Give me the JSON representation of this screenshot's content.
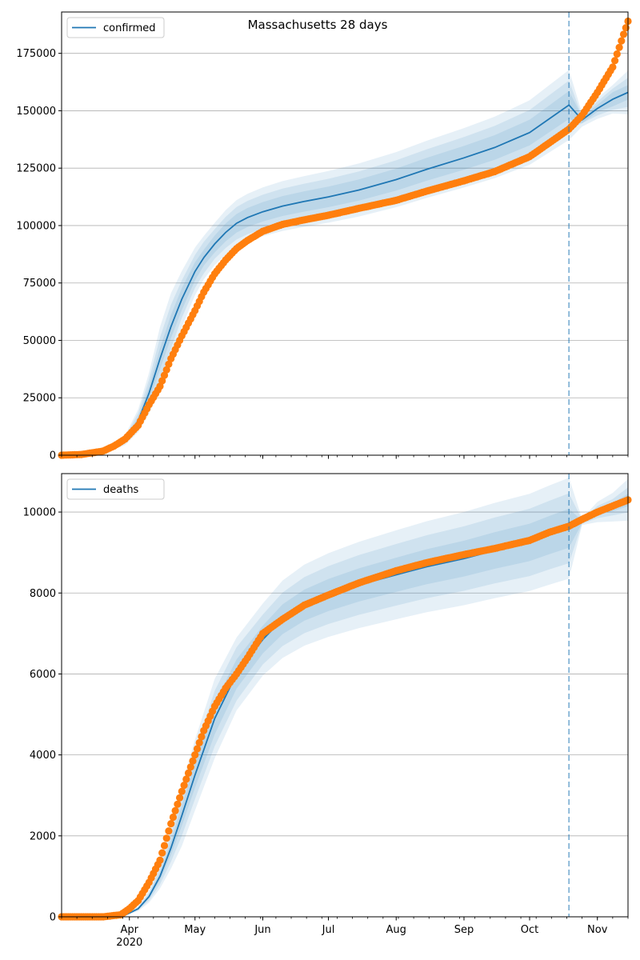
{
  "figure": {
    "title": "Massachusetts 28 days"
  },
  "colors": {
    "model_line": "#1f77b4",
    "observed_points": "#ff7f0e",
    "band": "#1f77b4",
    "grid": "#b0b0b0",
    "forecast_start_line": "#1f77b4"
  },
  "chart_data": [
    {
      "type": "line",
      "panel": "top",
      "legend": {
        "label": "confirmed",
        "position": "top-left"
      },
      "grid": "horizontal",
      "ylim": [
        0,
        193000
      ],
      "yticks": [
        0,
        25000,
        50000,
        75000,
        100000,
        125000,
        150000,
        175000
      ],
      "ytick_labels": [
        "0",
        "25000",
        "50000",
        "75000",
        "100000",
        "125000",
        "150000",
        "175000"
      ],
      "xlim": [
        "2020-03-01",
        "2020-11-15"
      ],
      "xticks": [
        "2020-04-01",
        "2020-05-01",
        "2020-06-01",
        "2020-07-01",
        "2020-08-01",
        "2020-09-01",
        "2020-10-01",
        "2020-11-01"
      ],
      "xtick_labels": [
        "",
        "",
        "",
        "",
        "",
        "",
        "",
        ""
      ],
      "forecast_start": "2020-10-19",
      "model": {
        "x": [
          "2020-03-01",
          "2020-03-10",
          "2020-03-20",
          "2020-03-30",
          "2020-04-05",
          "2020-04-10",
          "2020-04-15",
          "2020-04-20",
          "2020-04-25",
          "2020-05-01",
          "2020-05-05",
          "2020-05-10",
          "2020-05-15",
          "2020-05-20",
          "2020-05-25",
          "2020-06-01",
          "2020-06-10",
          "2020-06-20",
          "2020-07-01",
          "2020-07-15",
          "2020-08-01",
          "2020-08-15",
          "2020-09-01",
          "2020-09-15",
          "2020-10-01",
          "2020-10-10",
          "2020-10-19",
          "2020-10-25",
          "2020-11-01",
          "2020-11-08",
          "2020-11-15"
        ],
        "y": [
          0,
          300,
          1500,
          6500,
          15000,
          27000,
          42000,
          56000,
          68000,
          80000,
          86000,
          92000,
          97000,
          101000,
          103500,
          106000,
          108500,
          110500,
          112500,
          115500,
          120000,
          124500,
          129500,
          134000,
          140500,
          146500,
          152500,
          146000,
          151000,
          155000,
          158000
        ],
        "band_widths": [
          [
            0.11,
            0.22,
            0.33
          ],
          [
            0.11,
            0.22,
            0.33
          ],
          [
            0.11,
            0.22,
            0.33
          ],
          [
            0.11,
            0.22,
            0.33
          ],
          [
            0.11,
            0.22,
            0.33
          ],
          [
            0.11,
            0.22,
            0.33
          ],
          [
            0.11,
            0.22,
            0.33
          ],
          [
            0.09,
            0.17,
            0.26
          ],
          [
            0.07,
            0.12,
            0.18
          ],
          [
            0.05,
            0.09,
            0.13
          ],
          [
            0.04,
            0.08,
            0.11
          ],
          [
            0.04,
            0.07,
            0.1
          ],
          [
            0.04,
            0.07,
            0.1
          ],
          [
            0.04,
            0.07,
            0.1
          ],
          [
            0.04,
            0.07,
            0.1
          ],
          [
            0.04,
            0.07,
            0.1
          ],
          [
            0.04,
            0.07,
            0.1
          ],
          [
            0.04,
            0.07,
            0.1
          ],
          [
            0.04,
            0.07,
            0.1
          ],
          [
            0.04,
            0.07,
            0.1
          ],
          [
            0.04,
            0.07,
            0.1
          ],
          [
            0.04,
            0.07,
            0.1
          ],
          [
            0.04,
            0.07,
            0.1
          ],
          [
            0.04,
            0.07,
            0.1
          ],
          [
            0.04,
            0.07,
            0.1
          ],
          [
            0.04,
            0.07,
            0.1
          ],
          [
            0.04,
            0.07,
            0.1
          ],
          [
            0.01,
            0.01,
            0.02
          ],
          [
            0.01,
            0.02,
            0.03
          ],
          [
            0.02,
            0.03,
            0.04
          ],
          [
            0.02,
            0.04,
            0.06
          ]
        ]
      },
      "observed": {
        "x": [
          "2020-03-01",
          "2020-03-10",
          "2020-03-20",
          "2020-03-25",
          "2020-03-30",
          "2020-04-05",
          "2020-04-10",
          "2020-04-15",
          "2020-04-20",
          "2020-04-25",
          "2020-05-01",
          "2020-05-05",
          "2020-05-10",
          "2020-05-15",
          "2020-05-20",
          "2020-05-25",
          "2020-06-01",
          "2020-06-10",
          "2020-06-20",
          "2020-07-01",
          "2020-07-15",
          "2020-08-01",
          "2020-08-15",
          "2020-09-01",
          "2020-09-15",
          "2020-10-01",
          "2020-10-10",
          "2020-10-19",
          "2020-10-25",
          "2020-11-01",
          "2020-11-08",
          "2020-11-15"
        ],
        "y": [
          0,
          300,
          1800,
          4000,
          7000,
          13000,
          22000,
          30000,
          42000,
          52000,
          63000,
          71000,
          79000,
          85000,
          90000,
          93500,
          97500,
          100500,
          102500,
          104500,
          107500,
          111000,
          115000,
          119500,
          123500,
          130000,
          136000,
          142000,
          148000,
          158000,
          169000,
          189000
        ]
      }
    },
    {
      "type": "line",
      "panel": "bottom",
      "legend": {
        "label": "deaths",
        "position": "top-left"
      },
      "grid": "horizontal",
      "ylim": [
        0,
        10950
      ],
      "yticks": [
        0,
        2000,
        4000,
        6000,
        8000,
        10000
      ],
      "ytick_labels": [
        "0",
        "2000",
        "4000",
        "6000",
        "8000",
        "10000"
      ],
      "xlim": [
        "2020-03-01",
        "2020-11-15"
      ],
      "xticks": [
        "2020-04-01",
        "2020-05-01",
        "2020-06-01",
        "2020-07-01",
        "2020-08-01",
        "2020-09-01",
        "2020-10-01",
        "2020-11-01"
      ],
      "xtick_labels": [
        "Apr\n2020",
        "May",
        "Jun",
        "Jul",
        "Aug",
        "Sep",
        "Oct",
        "Nov"
      ],
      "forecast_start": "2020-10-19",
      "model": {
        "x": [
          "2020-03-01",
          "2020-03-20",
          "2020-03-30",
          "2020-04-05",
          "2020-04-10",
          "2020-04-15",
          "2020-04-20",
          "2020-04-25",
          "2020-05-01",
          "2020-05-10",
          "2020-05-20",
          "2020-06-01",
          "2020-06-10",
          "2020-06-20",
          "2020-07-01",
          "2020-07-15",
          "2020-08-01",
          "2020-08-15",
          "2020-09-01",
          "2020-09-15",
          "2020-10-01",
          "2020-10-10",
          "2020-10-19",
          "2020-10-25",
          "2020-11-01",
          "2020-11-08",
          "2020-11-15"
        ],
        "y": [
          0,
          0,
          40,
          200,
          500,
          1000,
          1700,
          2500,
          3500,
          4900,
          6000,
          6850,
          7350,
          7700,
          7950,
          8200,
          8450,
          8650,
          8850,
          9050,
          9250,
          9430,
          9600,
          9760,
          10000,
          10120,
          10300
        ],
        "band_widths": [
          [
            0.1,
            0.2,
            0.3
          ],
          [
            0.1,
            0.2,
            0.3
          ],
          [
            0.1,
            0.2,
            0.3
          ],
          [
            0.1,
            0.2,
            0.3
          ],
          [
            0.1,
            0.2,
            0.3
          ],
          [
            0.1,
            0.2,
            0.3
          ],
          [
            0.1,
            0.2,
            0.3
          ],
          [
            0.1,
            0.2,
            0.3
          ],
          [
            0.09,
            0.17,
            0.25
          ],
          [
            0.08,
            0.14,
            0.2
          ],
          [
            0.06,
            0.11,
            0.15
          ],
          [
            0.05,
            0.09,
            0.13
          ],
          [
            0.05,
            0.09,
            0.13
          ],
          [
            0.05,
            0.09,
            0.13
          ],
          [
            0.05,
            0.09,
            0.13
          ],
          [
            0.05,
            0.09,
            0.13
          ],
          [
            0.05,
            0.09,
            0.13
          ],
          [
            0.05,
            0.09,
            0.13
          ],
          [
            0.05,
            0.09,
            0.13
          ],
          [
            0.05,
            0.09,
            0.13
          ],
          [
            0.05,
            0.09,
            0.13
          ],
          [
            0.05,
            0.09,
            0.13
          ],
          [
            0.05,
            0.09,
            0.13
          ],
          [
            0.003,
            0.005,
            0.008
          ],
          [
            0.008,
            0.015,
            0.025
          ],
          [
            0.01,
            0.02,
            0.035
          ],
          [
            0.015,
            0.03,
            0.05
          ]
        ]
      },
      "observed": {
        "x": [
          "2020-03-01",
          "2020-03-20",
          "2020-03-28",
          "2020-04-01",
          "2020-04-05",
          "2020-04-10",
          "2020-04-15",
          "2020-04-20",
          "2020-04-25",
          "2020-05-01",
          "2020-05-05",
          "2020-05-10",
          "2020-05-15",
          "2020-05-20",
          "2020-05-25",
          "2020-06-01",
          "2020-06-10",
          "2020-06-20",
          "2020-07-01",
          "2020-07-15",
          "2020-08-01",
          "2020-08-15",
          "2020-09-01",
          "2020-09-15",
          "2020-10-01",
          "2020-10-10",
          "2020-10-19",
          "2020-10-25",
          "2020-11-01",
          "2020-11-08",
          "2020-11-15"
        ],
        "y": [
          0,
          0,
          50,
          200,
          400,
          850,
          1400,
          2300,
          3100,
          4000,
          4600,
          5200,
          5650,
          6000,
          6400,
          7000,
          7350,
          7700,
          7950,
          8250,
          8550,
          8750,
          8950,
          9100,
          9300,
          9500,
          9650,
          9820,
          10000,
          10150,
          10300
        ]
      }
    }
  ]
}
